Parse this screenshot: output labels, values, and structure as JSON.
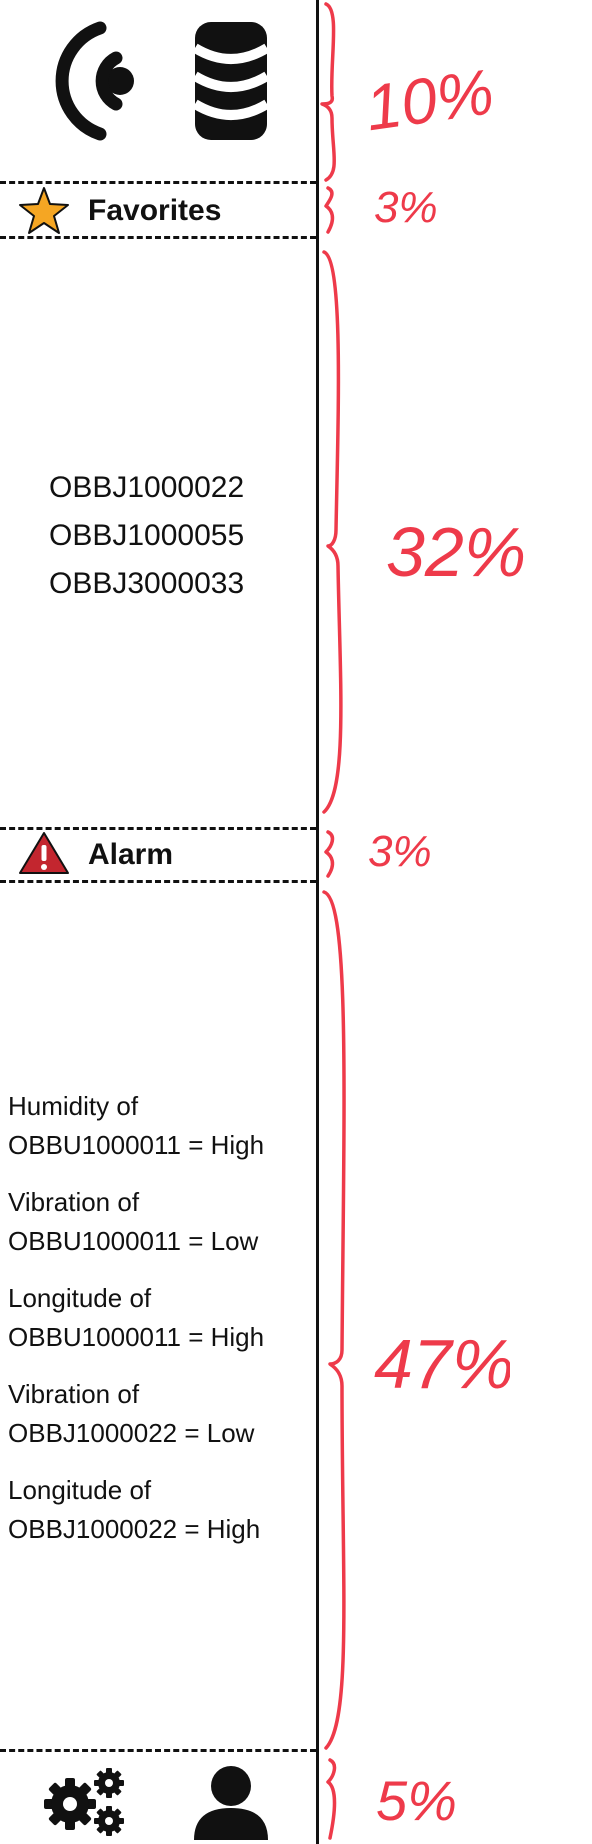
{
  "top_icons": [
    "wireless-icon",
    "database-icon"
  ],
  "favorites": {
    "title": "Favorites",
    "icon": "star-icon",
    "items": [
      "OBBJ1000022",
      "OBBJ1000055",
      "OBBJ3000033"
    ]
  },
  "alarm": {
    "title": "Alarm",
    "icon": "warning-icon",
    "items": [
      {
        "line1": "Humidity of",
        "line2": "OBBU1000011 = High"
      },
      {
        "line1": "Vibration of",
        "line2": "OBBU1000011 = Low"
      },
      {
        "line1": "Longitude of",
        "line2": "OBBU1000011 = High"
      },
      {
        "line1": "Vibration of",
        "line2": "OBBJ1000022 = Low"
      },
      {
        "line1": "Longitude of",
        "line2": "OBBJ1000022 = High"
      }
    ]
  },
  "bottom_icons": [
    "settings-gears-icon",
    "user-icon"
  ],
  "annotations": {
    "top": "10%",
    "favorites_header": "3%",
    "favorites_list": "32%",
    "alarm_header": "3%",
    "alarm_list": "47%",
    "bottom": "5%"
  },
  "colors": {
    "annotation": "#ee3a4a",
    "star": "#f5a623",
    "warning": "#c3262f"
  }
}
